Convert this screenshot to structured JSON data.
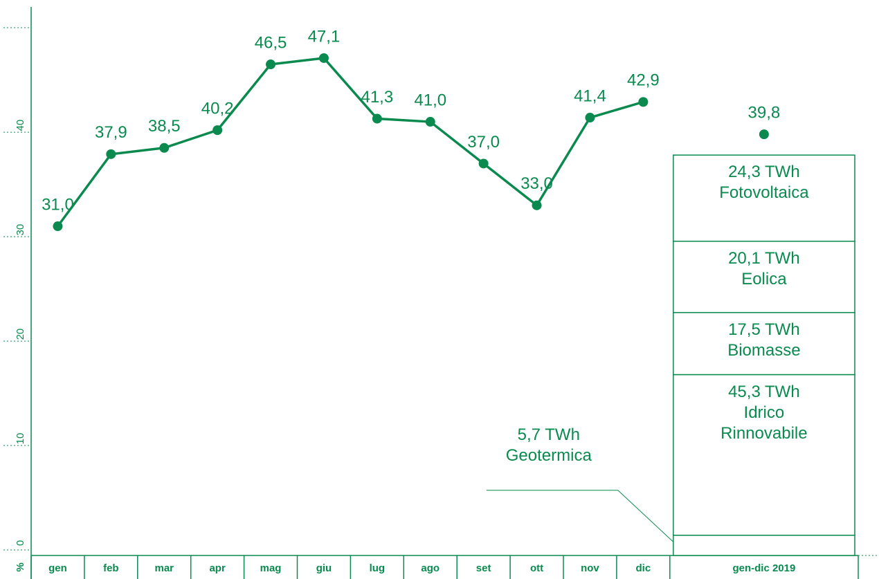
{
  "chart_data": {
    "type": "line",
    "y_label": "%",
    "categories": [
      "gen",
      "feb",
      "mar",
      "apr",
      "mag",
      "giu",
      "lug",
      "ago",
      "set",
      "ott",
      "nov",
      "dic"
    ],
    "values": [
      31.0,
      37.9,
      38.5,
      40.2,
      46.5,
      47.1,
      41.3,
      41.0,
      37.0,
      33.0,
      41.4,
      42.9
    ],
    "value_labels": [
      "31,0",
      "37,9",
      "38,5",
      "40,2",
      "46,5",
      "47,1",
      "41,3",
      "41,0",
      "37,0",
      "33,0",
      "41,4",
      "42,9"
    ],
    "color": "#0a8a4f",
    "ylim": [
      0,
      52
    ],
    "yticks": [
      0,
      10,
      20,
      30,
      40
    ],
    "annual": {
      "category": "gen-dic 2019",
      "value": 39.8,
      "value_label": "39,8",
      "segments": [
        {
          "name": "Geotermica",
          "value": 5.7,
          "label": "5,7 TWh"
        },
        {
          "name": "Idrico Rinnovabile",
          "value": 45.3,
          "label": "45,3 TWh"
        },
        {
          "name": "Biomasse",
          "value": 17.5,
          "label": "17,5 TWh"
        },
        {
          "name": "Eolica",
          "value": 20.1,
          "label": "20,1 TWh"
        },
        {
          "name": "Fotovoltaica",
          "value": 24.3,
          "label": "24,3 TWh"
        }
      ]
    }
  }
}
